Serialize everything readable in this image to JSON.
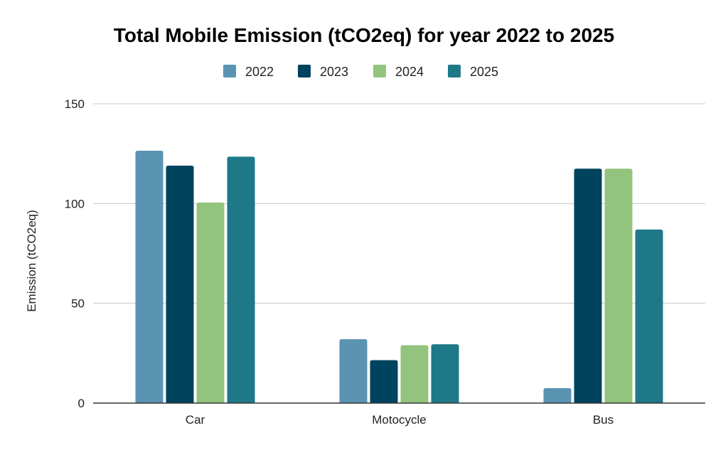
{
  "chart_data": {
    "type": "bar",
    "title": "Total Mobile Emission (tCO2eq) for year 2022 to 2025",
    "xlabel": "",
    "ylabel": "Emission (tCO2eq)",
    "categories": [
      "Car",
      "Motocycle",
      "Bus"
    ],
    "series": [
      {
        "name": "2022",
        "color": "#5b93b3",
        "values": [
          126.5,
          32,
          7.5
        ]
      },
      {
        "name": "2023",
        "color": "#00435e",
        "values": [
          119,
          21.5,
          117.5
        ]
      },
      {
        "name": "2024",
        "color": "#93c47d",
        "values": [
          100.5,
          29,
          117.5
        ]
      },
      {
        "name": "2025",
        "color": "#1e7887",
        "values": [
          123.5,
          29.5,
          87
        ]
      }
    ],
    "ylim": [
      0,
      150
    ],
    "yticks": [
      0,
      50,
      100,
      150
    ],
    "grid": true,
    "legend_position": "top"
  }
}
